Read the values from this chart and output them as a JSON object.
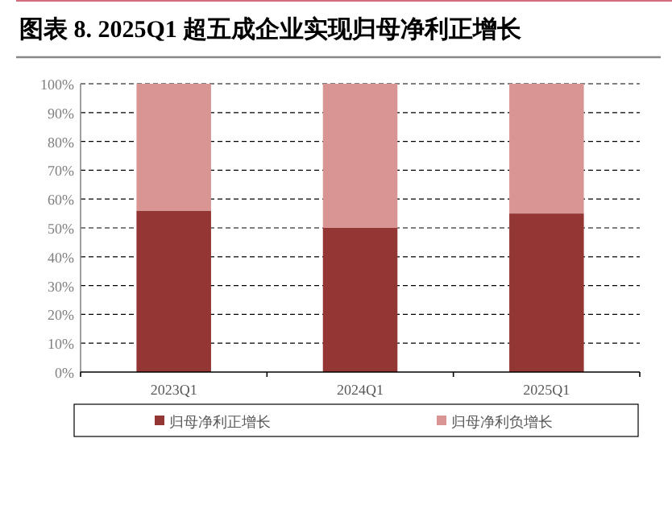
{
  "chart_data": {
    "type": "bar",
    "title": "图表 8. 2025Q1 超五成企业实现归母净利正增长",
    "categories": [
      "2023Q1",
      "2024Q1",
      "2025Q1"
    ],
    "stacked": true,
    "series": [
      {
        "name": "归母净利正增长",
        "color": "#943634",
        "values": [
          56,
          50,
          55
        ]
      },
      {
        "name": "归母净利负增长",
        "color": "#d99594",
        "values": [
          44,
          50,
          45
        ]
      }
    ],
    "ylim": [
      0,
      100
    ],
    "yticks": [
      {
        "value": 0,
        "label": "0%"
      },
      {
        "value": 10,
        "label": "10%"
      },
      {
        "value": 20,
        "label": "20%"
      },
      {
        "value": 30,
        "label": "30%"
      },
      {
        "value": 40,
        "label": "40%"
      },
      {
        "value": 50,
        "label": "50%"
      },
      {
        "value": 60,
        "label": "60%"
      },
      {
        "value": 70,
        "label": "70%"
      },
      {
        "value": 80,
        "label": "80%"
      },
      {
        "value": 90,
        "label": "90%"
      },
      {
        "value": 100,
        "label": "100%"
      }
    ],
    "grid": "y",
    "legend": "bottom"
  }
}
